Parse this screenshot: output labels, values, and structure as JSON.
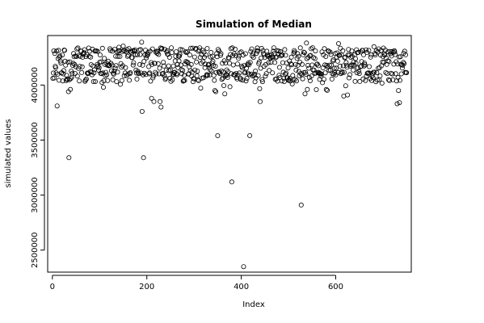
{
  "chart_data": {
    "type": "scatter",
    "title": "Simulation of Median",
    "xlabel": "Index",
    "ylabel": "simulated values",
    "xlim": [
      -10,
      760
    ],
    "ylim": [
      2300000,
      4450000
    ],
    "x_ticks": [
      0,
      200,
      400,
      600
    ],
    "y_ticks": [
      2500000,
      3000000,
      3500000,
      4000000
    ],
    "x_tick_labels": [
      "0",
      "200",
      "400",
      "600"
    ],
    "y_tick_labels": [
      "2500000",
      "3000000",
      "3500000",
      "4000000"
    ],
    "grid": false,
    "legend": "none",
    "point_style": "open-circle",
    "n_points": 750,
    "main_band": {
      "levels": [
        4050000,
        4100000,
        4120000,
        4170000,
        4200000,
        4260000,
        4290000,
        4320000
      ],
      "min": 3950000,
      "max": 4420000
    },
    "outliers": [
      {
        "x": 10,
        "y": 3810000
      },
      {
        "x": 35,
        "y": 3340000
      },
      {
        "x": 34,
        "y": 3940000
      },
      {
        "x": 38,
        "y": 3960000
      },
      {
        "x": 108,
        "y": 3980000
      },
      {
        "x": 190,
        "y": 3760000
      },
      {
        "x": 193,
        "y": 3340000
      },
      {
        "x": 210,
        "y": 3880000
      },
      {
        "x": 215,
        "y": 3850000
      },
      {
        "x": 228,
        "y": 3850000
      },
      {
        "x": 230,
        "y": 3800000
      },
      {
        "x": 344,
        "y": 3950000
      },
      {
        "x": 346,
        "y": 3940000
      },
      {
        "x": 350,
        "y": 3540000
      },
      {
        "x": 365,
        "y": 3920000
      },
      {
        "x": 380,
        "y": 3120000
      },
      {
        "x": 405,
        "y": 2350000
      },
      {
        "x": 418,
        "y": 3540000
      },
      {
        "x": 440,
        "y": 3850000
      },
      {
        "x": 527,
        "y": 2910000
      },
      {
        "x": 535,
        "y": 3920000
      },
      {
        "x": 540,
        "y": 3960000
      },
      {
        "x": 580,
        "y": 3960000
      },
      {
        "x": 617,
        "y": 3900000
      },
      {
        "x": 625,
        "y": 3910000
      },
      {
        "x": 730,
        "y": 3830000
      },
      {
        "x": 735,
        "y": 3840000
      },
      {
        "x": 733,
        "y": 3950000
      }
    ]
  }
}
